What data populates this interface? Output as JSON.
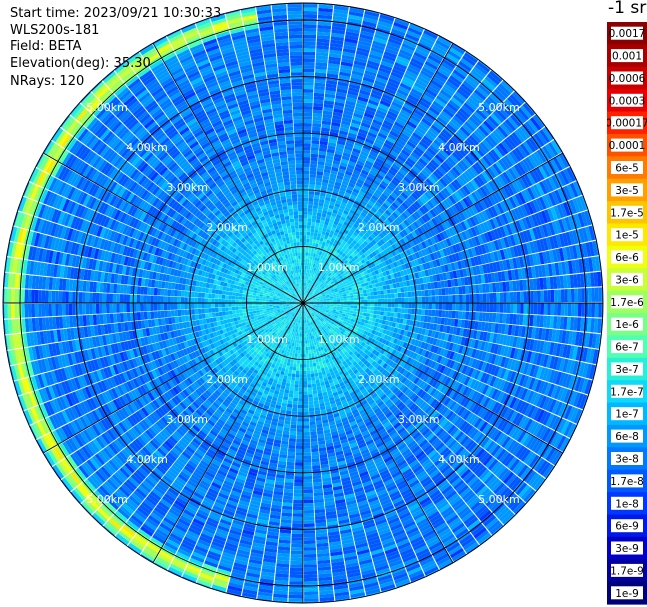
{
  "header": {
    "start_time": "Start time: 2023/09/21 10:30:33",
    "instrument": "WLS200s-181",
    "field": "Field: BETA",
    "elevation": "Elevation(deg): 35.30",
    "nrays": "NRays: 120"
  },
  "unit_label": "-1 sr",
  "chart_data": {
    "type": "heatmap",
    "subtype": "polar PPI scan",
    "field": "BETA",
    "instrument": "WLS200s-181",
    "start_time": "2023/09/21 10:30:33",
    "elevation_deg": 35.3,
    "n_rays": 120,
    "range_km": [
      0,
      5.3
    ],
    "range_ring_labels": [
      "1.00km",
      "2.00km",
      "3.00km",
      "4.00km",
      "5.00km"
    ],
    "grid": true,
    "log_scale": true,
    "colorbar": {
      "placement": "right",
      "ticks": [
        "0.0017",
        "0.001",
        "0.0006",
        "0.0003",
        "0.00017",
        "0.0001",
        "6e-5",
        "3e-5",
        "1.7e-5",
        "1e-5",
        "6e-6",
        "3e-6",
        "1.7e-6",
        "1e-6",
        "6e-7",
        "3e-7",
        "1.7e-7",
        "1e-7",
        "6e-8",
        "3e-8",
        "1.7e-8",
        "1e-8",
        "6e-9",
        "3e-9",
        "1.7e-9",
        "1e-9"
      ],
      "colors": [
        "#8b0000",
        "#a80000",
        "#c80000",
        "#e80000",
        "#ff2000",
        "#ff5000",
        "#ff7a00",
        "#ffa000",
        "#ffc400",
        "#ffe800",
        "#f0ff10",
        "#c8ff38",
        "#a0ff60",
        "#78ff88",
        "#50ffb0",
        "#28f0d8",
        "#10d8f8",
        "#00b8ff",
        "#0098ff",
        "#0078ff",
        "#0058ff",
        "#0038ff",
        "#0018e8",
        "#0000c8",
        "#0000a0",
        "#000078"
      ]
    },
    "background_level": "3e-8",
    "near_field_level": "1.7e-7",
    "aerosol_layer": {
      "range_km": 5.1,
      "azimuth_span_deg": [
        195,
        350
      ],
      "peak_level": "1e-5"
    }
  }
}
